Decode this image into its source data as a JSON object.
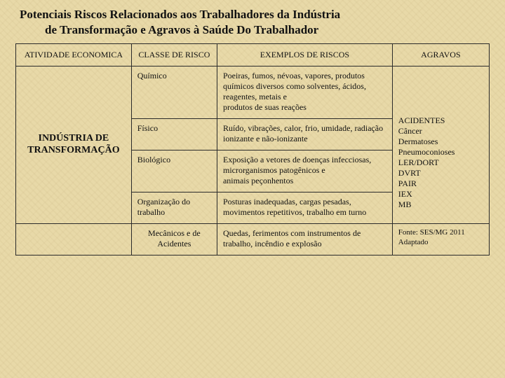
{
  "title_line1": "Potenciais Riscos Relacionados aos Trabalhadores da Indústria",
  "title_line2": "de Transformação e Agravos à  Saúde Do Trabalhador",
  "headers": {
    "col1": "ATIVIDADE ECONOMICA",
    "col2": "CLASSE DE RISCO",
    "col3": "EXEMPLOS DE RISCOS",
    "col4": "AGRAVOS"
  },
  "activity": "INDÚSTRIA DE TRANSFORMAÇÃO",
  "rows": [
    {
      "classe": "Químico",
      "exemplo": "Poeiras, fumos, névoas, vapores, produtos químicos diversos como solventes, ácidos, reagentes, metais e\nprodutos de suas reações"
    },
    {
      "classe": "Físico",
      "exemplo": "Ruído, vibrações, calor, frio, umidade, radiação ionizante e não-ionizante"
    },
    {
      "classe": "Biológico",
      "exemplo": "Exposição a vetores de doenças infecciosas, microrganismos patogênicos e\nanimais peçonhentos"
    },
    {
      "classe": "Organização do trabalho",
      "exemplo": "Posturas inadequadas, cargas pesadas, movimentos repetitivos, trabalho em turno"
    },
    {
      "classe": "Mecânicos e de Acidentes",
      "exemplo": "Quedas, ferimentos com instrumentos de trabalho, incêndio e explosão"
    }
  ],
  "agravos_list": "ACIDENTES\nCâncer\nDermatoses\nPneumoconioses\nLER/DORT\nDVRT\nPAIR\nIEX\nMB",
  "source": "Fonte: SES/MG 2011 Adaptado"
}
